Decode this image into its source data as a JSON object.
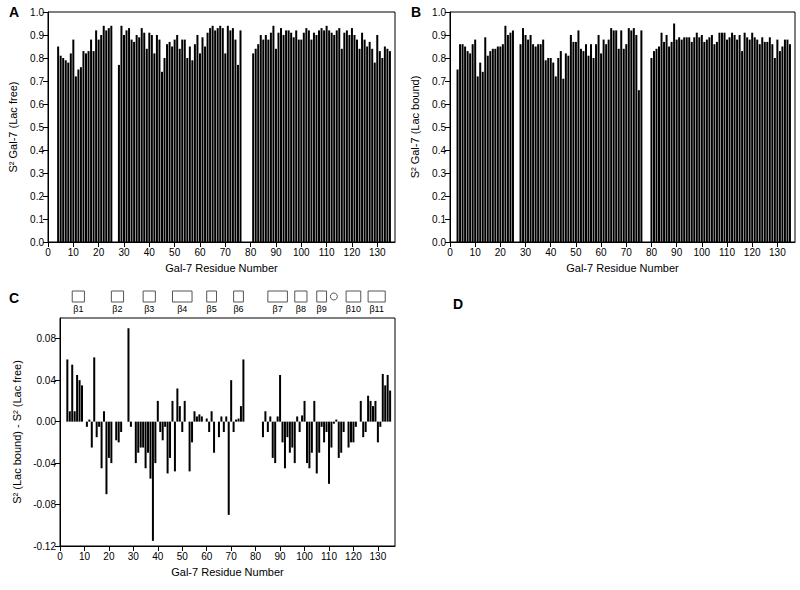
{
  "chart_data": [
    {
      "type": "bar",
      "title": "A",
      "y_label": "S² Gal-7 (Lac free)",
      "x_label": "Gal-7 Residue Number",
      "color": "#000000",
      "grid": false,
      "x": [
        3,
        4,
        5,
        6,
        7,
        8,
        9,
        10,
        11,
        12,
        13,
        14,
        15,
        16,
        17,
        18,
        19,
        20,
        21,
        22,
        23,
        24,
        25,
        26,
        27,
        28,
        29,
        30,
        31,
        32,
        33,
        34,
        35,
        36,
        37,
        38,
        39,
        40,
        41,
        42,
        43,
        44,
        45,
        46,
        47,
        48,
        49,
        50,
        51,
        52,
        53,
        54,
        55,
        56,
        57,
        58,
        59,
        60,
        61,
        62,
        63,
        64,
        65,
        66,
        67,
        68,
        69,
        70,
        71,
        72,
        73,
        74,
        75,
        76,
        77,
        78,
        79,
        80,
        81,
        82,
        83,
        84,
        85,
        86,
        87,
        88,
        89,
        90,
        91,
        92,
        93,
        94,
        95,
        96,
        97,
        98,
        99,
        100,
        101,
        102,
        103,
        104,
        105,
        106,
        107,
        108,
        109,
        110,
        111,
        112,
        113,
        114,
        115,
        116,
        117,
        118,
        119,
        120,
        121,
        122,
        123,
        124,
        125,
        126,
        127,
        128,
        129,
        130,
        131,
        132,
        133,
        134,
        135
      ],
      "values": [
        null,
        0.85,
        0.81,
        0.8,
        0.79,
        0.78,
        0.82,
        0.88,
        0.72,
        0.75,
        0.76,
        0.83,
        0.82,
        0.83,
        0.88,
        0.83,
        0.92,
        0.88,
        0.9,
        0.94,
        0.92,
        0.93,
        0.94,
        null,
        null,
        0.77,
        0.94,
        0.9,
        0.92,
        0.93,
        0.88,
        0.87,
        0.9,
        0.89,
        0.93,
        0.91,
        0.84,
        0.91,
        0.9,
        0.82,
        0.9,
        0.88,
        0.74,
        0.8,
        0.86,
        0.87,
        0.85,
        0.88,
        0.9,
        0.84,
        0.88,
        0.88,
        0.8,
        0.85,
        0.79,
        0.86,
        0.9,
        0.82,
        0.89,
        0.85,
        0.91,
        0.93,
        0.94,
        0.92,
        0.93,
        0.94,
        0.93,
        0.82,
        0.94,
        0.92,
        0.93,
        0.88,
        0.77,
        0.92,
        null,
        null,
        null,
        null,
        0.82,
        0.84,
        0.86,
        0.9,
        0.88,
        0.9,
        0.88,
        0.91,
        0.94,
        0.84,
        0.91,
        0.93,
        0.9,
        0.92,
        0.92,
        0.91,
        0.89,
        0.92,
        0.88,
        0.88,
        0.91,
        0.93,
        0.92,
        0.88,
        0.91,
        0.9,
        0.92,
        0.93,
        0.92,
        0.94,
        0.92,
        0.91,
        0.9,
        0.92,
        0.93,
        0.84,
        0.91,
        0.92,
        0.9,
        0.93,
        0.9,
        0.88,
        0.84,
        0.91,
        0.88,
        0.85,
        0.87,
        0.84,
        0.78,
        0.9,
        0.83,
        0.8,
        0.85,
        0.84,
        0.83
      ],
      "xlim": [
        0,
        137
      ],
      "xticks": [
        0,
        10,
        20,
        30,
        40,
        50,
        60,
        70,
        80,
        90,
        100,
        110,
        120,
        130
      ],
      "ylim": [
        0,
        1
      ],
      "yticks": [
        {
          "value": 0,
          "label": "0.0"
        },
        0.1,
        0.2,
        0.3,
        0.4,
        0.5,
        0.6,
        0.7,
        0.8,
        0.9,
        {
          "value": 1,
          "label": "1.0"
        }
      ]
    },
    {
      "type": "bar",
      "title": "B",
      "y_label": "S² Gal-7 (Lac bound)",
      "x_label": "Gal-7 Residue Number",
      "color": "#000000",
      "grid": false,
      "x": [
        3,
        4,
        5,
        6,
        7,
        8,
        9,
        10,
        11,
        12,
        13,
        14,
        15,
        16,
        17,
        18,
        19,
        20,
        21,
        22,
        23,
        24,
        25,
        26,
        27,
        28,
        29,
        30,
        31,
        32,
        33,
        34,
        35,
        36,
        37,
        38,
        39,
        40,
        41,
        42,
        43,
        44,
        45,
        46,
        47,
        48,
        49,
        50,
        51,
        52,
        53,
        54,
        55,
        56,
        57,
        58,
        59,
        60,
        61,
        62,
        63,
        64,
        65,
        66,
        67,
        68,
        69,
        70,
        71,
        72,
        73,
        74,
        75,
        76,
        77,
        78,
        79,
        80,
        81,
        82,
        83,
        84,
        85,
        86,
        87,
        88,
        89,
        90,
        91,
        92,
        93,
        94,
        95,
        96,
        97,
        98,
        99,
        100,
        101,
        102,
        103,
        104,
        105,
        106,
        107,
        108,
        109,
        110,
        111,
        112,
        113,
        114,
        115,
        116,
        117,
        118,
        119,
        120,
        121,
        122,
        123,
        124,
        125,
        126,
        127,
        128,
        129,
        130,
        131,
        132,
        133,
        134,
        135
      ],
      "values": [
        0.75,
        0.86,
        0.86,
        0.85,
        0.83,
        0.82,
        0.86,
        0.88,
        0.72,
        0.78,
        0.74,
        0.89,
        0.81,
        0.83,
        0.84,
        0.84,
        0.85,
        0.85,
        0.86,
        0.94,
        0.9,
        0.91,
        0.92,
        null,
        null,
        0.86,
        0.93,
        0.9,
        0.88,
        0.9,
        0.86,
        0.85,
        0.86,
        0.86,
        0.88,
        0.79,
        0.8,
        0.8,
        0.78,
        0.72,
        0.8,
        0.83,
        0.71,
        0.82,
        0.81,
        0.9,
        0.87,
        0.87,
        0.92,
        0.84,
        0.83,
        0.86,
        0.81,
        0.86,
        0.8,
        0.86,
        0.9,
        0.82,
        0.88,
        0.86,
        0.88,
        0.93,
        0.92,
        0.92,
        0.84,
        0.92,
        0.84,
        0.86,
        0.93,
        0.92,
        0.93,
        0.9,
        0.66,
        0.92,
        null,
        null,
        null,
        0.8,
        0.83,
        0.84,
        0.85,
        0.91,
        0.87,
        0.9,
        0.85,
        0.87,
        0.95,
        0.88,
        0.89,
        0.88,
        0.89,
        0.89,
        0.89,
        0.87,
        0.89,
        0.91,
        0.89,
        0.9,
        0.87,
        0.88,
        0.89,
        0.9,
        0.86,
        0.87,
        0.91,
        0.91,
        0.91,
        0.88,
        0.89,
        0.91,
        0.9,
        0.88,
        0.9,
        0.83,
        0.91,
        0.89,
        0.88,
        0.91,
        0.89,
        0.88,
        0.86,
        0.89,
        0.87,
        0.87,
        0.89,
        0.86,
        0.8,
        0.88,
        0.83,
        0.85,
        0.88,
        0.88,
        0.86
      ],
      "xlim": [
        0,
        137
      ],
      "xticks": [
        0,
        10,
        20,
        30,
        40,
        50,
        60,
        70,
        80,
        90,
        100,
        110,
        120,
        130
      ],
      "ylim": [
        0,
        1
      ],
      "yticks": [
        {
          "value": 0,
          "label": "0.0"
        },
        0.1,
        0.2,
        0.3,
        0.4,
        0.5,
        0.6,
        0.7,
        0.8,
        0.9,
        {
          "value": 1,
          "label": "1.0"
        }
      ]
    },
    {
      "type": "bar",
      "title": "C",
      "y_label": "S² (Lac bound) - S² (Lac free)",
      "x_label": "Gal-7 Residue Number",
      "color": "#000000",
      "grid": false,
      "x": [
        3,
        4,
        5,
        6,
        7,
        8,
        9,
        10,
        11,
        12,
        13,
        14,
        15,
        16,
        17,
        18,
        19,
        20,
        21,
        22,
        23,
        24,
        25,
        26,
        27,
        28,
        29,
        30,
        31,
        32,
        33,
        34,
        35,
        36,
        37,
        38,
        39,
        40,
        41,
        42,
        43,
        44,
        45,
        46,
        47,
        48,
        49,
        50,
        51,
        52,
        53,
        54,
        55,
        56,
        57,
        58,
        59,
        60,
        61,
        62,
        63,
        64,
        65,
        66,
        67,
        68,
        69,
        70,
        71,
        72,
        73,
        74,
        75,
        76,
        77,
        78,
        79,
        80,
        81,
        82,
        83,
        84,
        85,
        86,
        87,
        88,
        89,
        90,
        91,
        92,
        93,
        94,
        95,
        96,
        97,
        98,
        99,
        100,
        101,
        102,
        103,
        104,
        105,
        106,
        107,
        108,
        109,
        110,
        111,
        112,
        113,
        114,
        115,
        116,
        117,
        118,
        119,
        120,
        121,
        122,
        123,
        124,
        125,
        126,
        127,
        128,
        129,
        130,
        131,
        132,
        133,
        134,
        135
      ],
      "values": [
        0.06,
        0.01,
        0.055,
        0.01,
        0.045,
        0.04,
        0.035,
        0.0,
        -0.005,
        0.002,
        -0.025,
        0.062,
        -0.015,
        -0.005,
        -0.045,
        0.01,
        -0.07,
        -0.035,
        -0.04,
        0.0,
        -0.018,
        -0.02,
        -0.01,
        null,
        null,
        0.09,
        -0.005,
        0.0,
        -0.04,
        -0.03,
        -0.025,
        -0.025,
        -0.045,
        -0.03,
        -0.055,
        -0.115,
        -0.04,
        0.02,
        -0.01,
        -0.018,
        -0.005,
        -0.05,
        -0.035,
        0.02,
        -0.048,
        0.032,
        0.015,
        -0.01,
        0.02,
        0.0,
        -0.048,
        -0.02,
        0.01,
        0.005,
        0.007,
        0.005,
        0.0,
        0.003,
        -0.01,
        0.01,
        -0.03,
        0.0,
        -0.015,
        0.005,
        -0.01,
        0.005,
        -0.09,
        0.04,
        -0.01,
        0.002,
        0.003,
        0.015,
        0.06,
        0.0,
        null,
        null,
        null,
        null,
        0.0,
        0.0,
        -0.015,
        0.01,
        -0.01,
        0.005,
        -0.035,
        -0.04,
        0.005,
        0.045,
        -0.02,
        -0.045,
        -0.015,
        -0.03,
        -0.025,
        -0.04,
        0.005,
        -0.01,
        0.006,
        0.02,
        -0.04,
        -0.045,
        -0.03,
        0.02,
        -0.05,
        -0.03,
        -0.005,
        -0.02,
        -0.01,
        -0.06,
        -0.025,
        -0.002,
        0.002,
        -0.035,
        -0.03,
        -0.01,
        0.0,
        -0.025,
        -0.02,
        -0.02,
        -0.005,
        0.0,
        0.02,
        -0.015,
        -0.01,
        0.025,
        0.02,
        0.015,
        0.02,
        -0.02,
        -0.005,
        0.046,
        0.035,
        0.045,
        0.03
      ],
      "xlim": [
        0,
        137
      ],
      "xticks": [
        0,
        10,
        20,
        30,
        40,
        50,
        60,
        70,
        80,
        90,
        100,
        110,
        120,
        130
      ],
      "ylim": [
        -0.12,
        0.1
      ],
      "yticks": [
        -0.12,
        -0.08,
        -0.04,
        {
          "value": 0,
          "label": "0.00"
        },
        0.04,
        0.08
      ],
      "secondary_structure": [
        {
          "label": "β1",
          "start": 5,
          "end": 10
        },
        {
          "label": "β2",
          "start": 21,
          "end": 26
        },
        {
          "label": "β3",
          "start": 34,
          "end": 39
        },
        {
          "label": "β4",
          "start": 46,
          "end": 54
        },
        {
          "label": "β5",
          "start": 60,
          "end": 64
        },
        {
          "label": "β6",
          "start": 71,
          "end": 75
        },
        {
          "label": "β7",
          "start": 85,
          "end": 93
        },
        {
          "label": "β8",
          "start": 96,
          "end": 101
        },
        {
          "label": "β9",
          "start": 105,
          "end": 109
        },
        {
          "start": 111,
          "end": 113,
          "marker": "circle"
        },
        {
          "label": "β10",
          "start": 117,
          "end": 123
        },
        {
          "label": "β11",
          "start": 126,
          "end": 133
        }
      ]
    }
  ],
  "structure_panel": {
    "title": "D"
  }
}
